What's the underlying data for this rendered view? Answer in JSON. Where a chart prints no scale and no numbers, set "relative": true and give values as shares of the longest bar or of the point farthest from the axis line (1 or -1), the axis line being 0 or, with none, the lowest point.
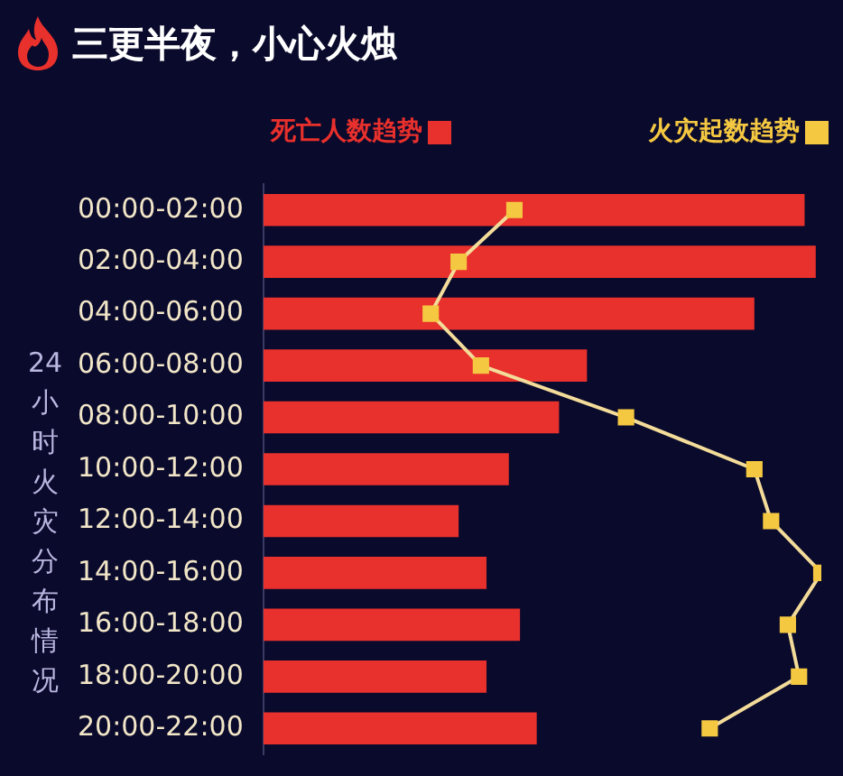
{
  "chart_data": {
    "type": "bar",
    "orientation": "horizontal",
    "relative": true,
    "title": "三更半夜，小心火烛",
    "ylabel": "24小时火灾分布情况",
    "legend": "top",
    "marker": "square",
    "categories": [
      "00:00-02:00",
      "02:00-04:00",
      "04:00-06:00",
      "06:00-08:00",
      "08:00-10:00",
      "10:00-12:00",
      "12:00-14:00",
      "14:00-16:00",
      "16:00-18:00",
      "18:00-20:00",
      "20:00-22:00"
    ],
    "series": [
      {
        "name": "死亡人数趋势",
        "color": "#e8302c",
        "values": [
          0.97,
          0.99,
          0.88,
          0.58,
          0.53,
          0.44,
          0.35,
          0.4,
          0.46,
          0.4,
          0.49
        ]
      },
      {
        "name": "火灾起数趋势",
        "type": "line",
        "color": "#f5c842",
        "values": [
          0.45,
          0.35,
          0.3,
          0.39,
          0.65,
          0.88,
          0.91,
          1,
          0.94,
          0.96,
          0.8
        ]
      }
    ]
  }
}
